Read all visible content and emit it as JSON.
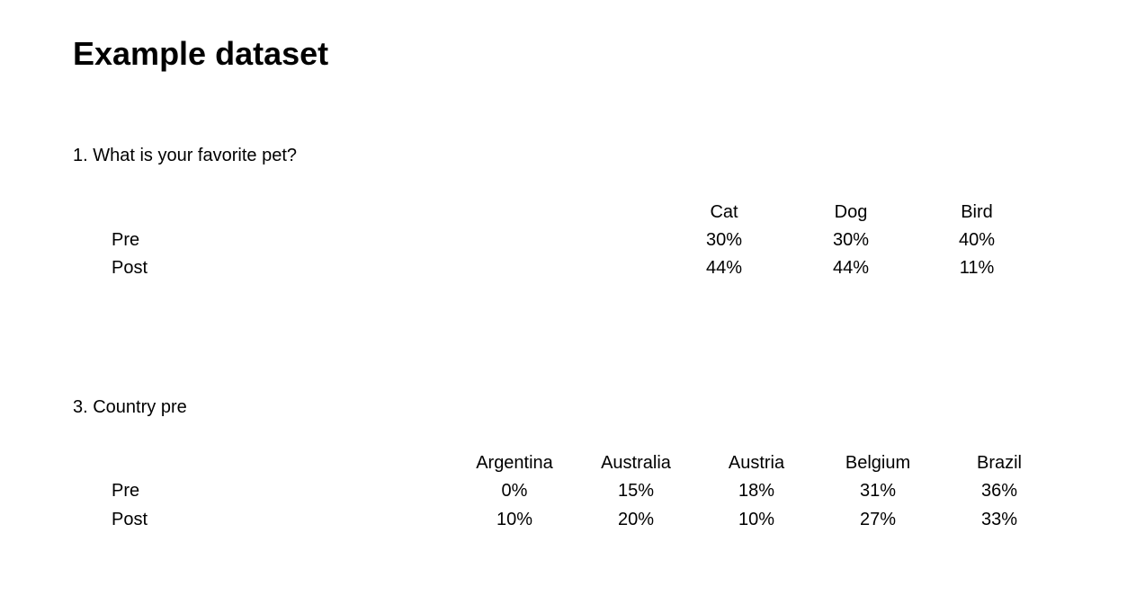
{
  "title": "Example dataset",
  "questions": [
    {
      "title": "1. What is your favorite pet?",
      "columns": [
        "Cat",
        "Dog",
        "Bird"
      ],
      "rows": [
        {
          "label": "Pre",
          "values": [
            "30%",
            "30%",
            "40%"
          ]
        },
        {
          "label": "Post",
          "values": [
            "44%",
            "44%",
            "11%"
          ]
        }
      ]
    },
    {
      "title": "3. Country pre",
      "columns": [
        "Argentina",
        "Australia",
        "Austria",
        "Belgium",
        "Brazil"
      ],
      "rows": [
        {
          "label": "Pre",
          "values": [
            "0%",
            "15%",
            "18%",
            "31%",
            "36%"
          ]
        },
        {
          "label": "Post",
          "values": [
            "10%",
            "20%",
            "10%",
            "27%",
            "33%"
          ]
        }
      ]
    }
  ]
}
